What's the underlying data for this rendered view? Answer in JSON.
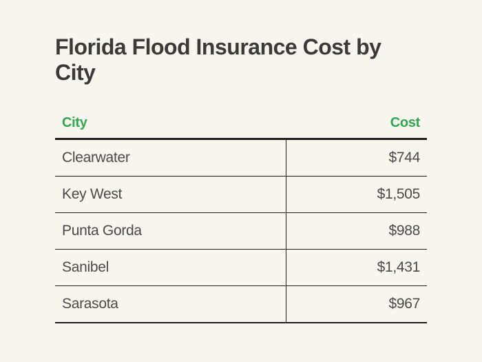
{
  "title": "Florida Flood Insurance Cost by City",
  "table": {
    "type": "table",
    "columns": [
      {
        "key": "city",
        "label": "City",
        "align": "left"
      },
      {
        "key": "cost",
        "label": "Cost",
        "align": "right"
      }
    ],
    "rows": [
      {
        "city": "Clearwater",
        "cost": "$744"
      },
      {
        "city": "Key West",
        "cost": "$1,505"
      },
      {
        "city": "Punta Gorda",
        "cost": "$988"
      },
      {
        "city": "Sanibel",
        "cost": "$1,431"
      },
      {
        "city": "Sarasota",
        "cost": "$967"
      }
    ],
    "header_color": "#2fa84f",
    "header_fontsize": 20,
    "cell_fontsize": 21,
    "cell_color": "#4a4a4a",
    "border_color": "#1a1a1a",
    "header_border_width": 3,
    "row_border_width": 1.5,
    "background_color": "#f7f6ee"
  },
  "title_fontsize": 32,
  "title_color": "#3a3a3a"
}
